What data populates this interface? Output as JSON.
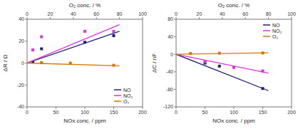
{
  "chart_data": [
    {
      "type": "line",
      "xlabel": "NOx conc. / ppm",
      "ylabel": "ΔR / Ω",
      "x2label": "O₂ conc. / %",
      "xlim": [
        0,
        200
      ],
      "xticks": [
        0,
        50,
        100,
        150,
        200
      ],
      "ylim": [
        -40,
        40
      ],
      "yticks": [
        -40,
        -20,
        0,
        20,
        40
      ],
      "x2lim": [
        0,
        100
      ],
      "x2ticks": [
        0,
        20,
        40,
        60,
        80,
        100
      ],
      "legend": "lower right",
      "series": [
        {
          "name": "NO",
          "type": "line",
          "color": "#1f1f7a",
          "x": [
            0,
            160
          ],
          "values": [
            0,
            29.0
          ]
        },
        {
          "type": "scatter",
          "marker": "square",
          "color": "#1f1f7a",
          "x": [
            10,
            25,
            100,
            150
          ],
          "values": [
            1.0,
            13.0,
            19.0,
            25.0
          ]
        },
        {
          "name": "NO₂",
          "type": "line",
          "color": "#e030e0",
          "x": [
            0,
            160
          ],
          "values": [
            0,
            35.0
          ]
        },
        {
          "type": "scatter",
          "marker": "square",
          "color": "#e030e0",
          "x": [
            10,
            25,
            100,
            150
          ],
          "values": [
            12.0,
            24.0,
            29.0,
            29.0
          ]
        },
        {
          "name": "O₂",
          "type": "line",
          "color": "#d47800",
          "x": [
            0,
            160
          ],
          "values": [
            0,
            -2.5
          ]
        },
        {
          "type": "scatter",
          "marker": "square",
          "color": "#d47800",
          "x": [
            25,
            75,
            150
          ],
          "values": [
            0.5,
            0.0,
            -2.0
          ]
        }
      ]
    },
    {
      "type": "line",
      "xlabel": "NOx conc. / ppm",
      "ylabel": "ΔC / nF",
      "x2label": "O₂ conc. / %",
      "xlim": [
        0,
        200
      ],
      "xticks": [
        0,
        50,
        100,
        150,
        200
      ],
      "ylim": [
        -120,
        80
      ],
      "yticks": [
        -120,
        -80,
        -40,
        0,
        40,
        80
      ],
      "x2lim": [
        0,
        100
      ],
      "x2ticks": [
        0,
        20,
        40,
        60,
        80,
        100
      ],
      "legend": "upper right",
      "series": [
        {
          "name": "NO",
          "type": "line",
          "color": "#1f1f7a",
          "x": [
            0,
            160
          ],
          "values": [
            0,
            -83.0
          ]
        },
        {
          "type": "scatter",
          "marker": "square",
          "color": "#1f1f7a",
          "x": [
            50,
            75,
            150
          ],
          "values": [
            -20.0,
            -27.0,
            -78.0
          ]
        },
        {
          "name": "NO₂",
          "type": "line",
          "color": "#e030e0",
          "x": [
            0,
            160
          ],
          "values": [
            0,
            -43.0
          ]
        },
        {
          "type": "scatter",
          "marker": "square",
          "color": "#e030e0",
          "x": [
            50,
            100,
            150
          ],
          "values": [
            -17.0,
            -30.0,
            -38.0
          ]
        },
        {
          "name": "O₂",
          "type": "line",
          "color": "#d47800",
          "x": [
            0,
            160
          ],
          "values": [
            0,
            3.5
          ]
        },
        {
          "type": "scatter",
          "marker": "square",
          "color": "#d47800",
          "x": [
            25,
            75,
            150
          ],
          "values": [
            2.0,
            2.5,
            3.0
          ]
        }
      ]
    }
  ]
}
